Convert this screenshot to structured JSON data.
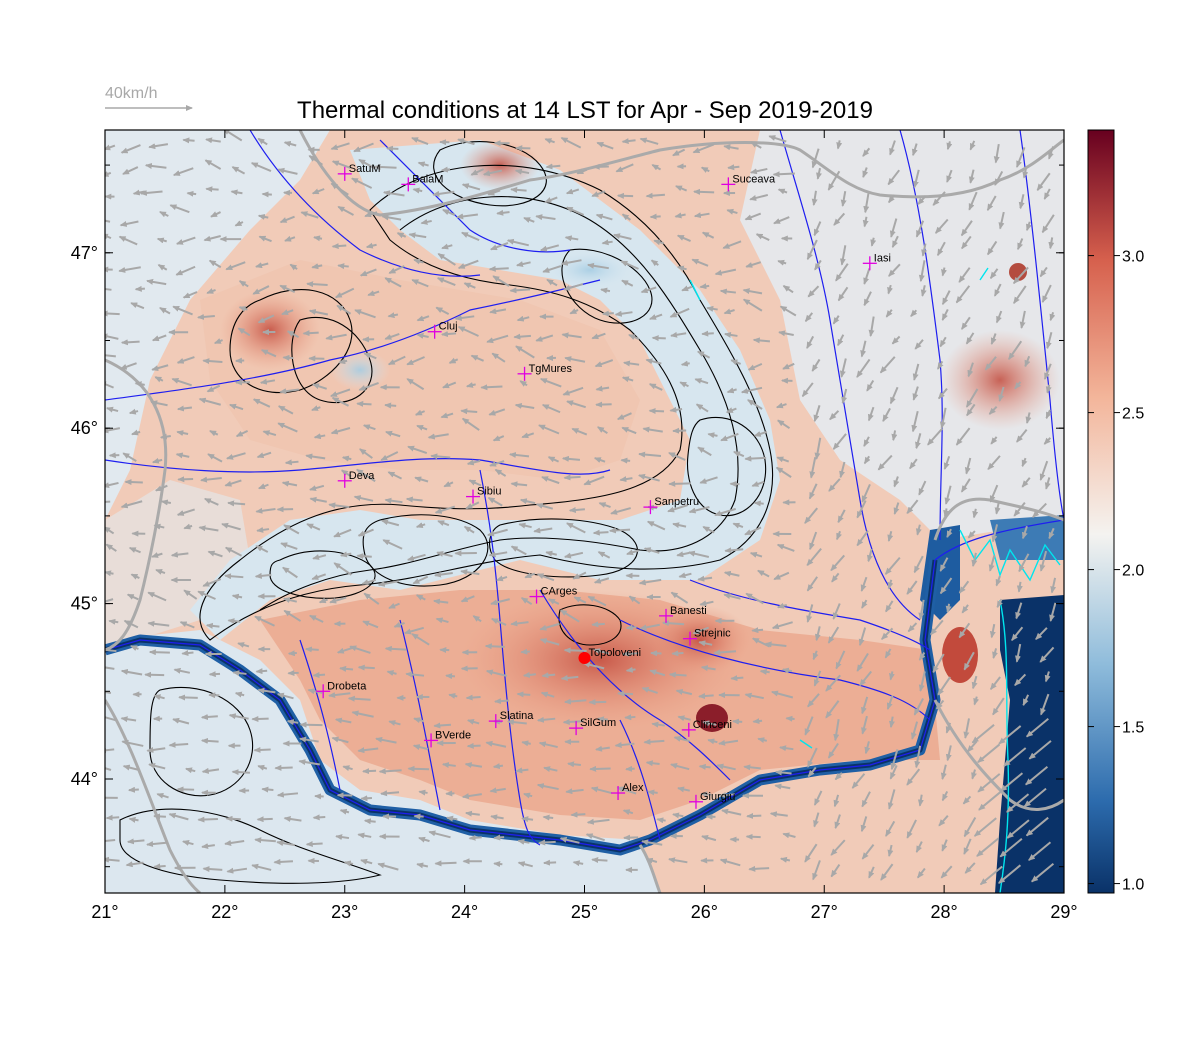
{
  "title": "Thermal conditions at 14 LST for Apr - Sep  2019-2019",
  "scale_arrow_label": "40km/h",
  "colors": {
    "min": "#0a3268",
    "low": "#2c6bad",
    "mid_low": "#8fbcdb",
    "neutral": "#f4f3f0",
    "mid_high": "#f3b59a",
    "high": "#d6604d",
    "max": "#67001f",
    "rivers": "#1e1ef0",
    "borders": "#aaaaaa",
    "contours": "#000000",
    "station_marker": "#e000e0",
    "highlight_station": "#ff0000",
    "wind_arrows": "#a8a8a8",
    "lakes": "#00e5ee",
    "sea": "#0a3268"
  },
  "map": {
    "lon_range": [
      21,
      29
    ],
    "lat_range": [
      43.35,
      47.7
    ],
    "lon_ticks": [
      "21°",
      "22°",
      "23°",
      "24°",
      "25°",
      "26°",
      "27°",
      "28°",
      "29°"
    ],
    "lat_ticks": [
      "44°",
      "45°",
      "46°",
      "47°"
    ]
  },
  "colorbar": {
    "range": [
      0.97,
      3.4
    ],
    "ticks": [
      "1.0",
      "1.5",
      "2.0",
      "2.5",
      "3.0"
    ]
  },
  "stations": [
    {
      "name": "SatuM",
      "lon": 23.0,
      "lat": 47.45
    },
    {
      "name": "BaiaM",
      "lon": 23.53,
      "lat": 47.39
    },
    {
      "name": "Suceava",
      "lon": 26.2,
      "lat": 47.39
    },
    {
      "name": "Iasi",
      "lon": 27.38,
      "lat": 46.94
    },
    {
      "name": "Cluj",
      "lon": 23.75,
      "lat": 46.55
    },
    {
      "name": "TgMures",
      "lon": 24.5,
      "lat": 46.31
    },
    {
      "name": "Deva",
      "lon": 23.0,
      "lat": 45.7
    },
    {
      "name": "Sibiu",
      "lon": 24.07,
      "lat": 45.61
    },
    {
      "name": "Sanpetru",
      "lon": 25.55,
      "lat": 45.55
    },
    {
      "name": "CArges",
      "lon": 24.6,
      "lat": 45.04
    },
    {
      "name": "Banesti",
      "lon": 25.68,
      "lat": 44.93
    },
    {
      "name": "Strejnic",
      "lon": 25.88,
      "lat": 44.8
    },
    {
      "name": "Topoloveni",
      "lon": 25.0,
      "lat": 44.69,
      "highlight": true
    },
    {
      "name": "Drobeta",
      "lon": 22.82,
      "lat": 44.5
    },
    {
      "name": "Slatina",
      "lon": 24.26,
      "lat": 44.33
    },
    {
      "name": "SilGum",
      "lon": 24.93,
      "lat": 44.29
    },
    {
      "name": "Clinceni",
      "lon": 25.87,
      "lat": 44.28
    },
    {
      "name": "BVerde",
      "lon": 23.72,
      "lat": 44.22
    },
    {
      "name": "Alex",
      "lon": 25.28,
      "lat": 43.92
    },
    {
      "name": "Giurgiu",
      "lon": 25.93,
      "lat": 43.87
    }
  ]
}
